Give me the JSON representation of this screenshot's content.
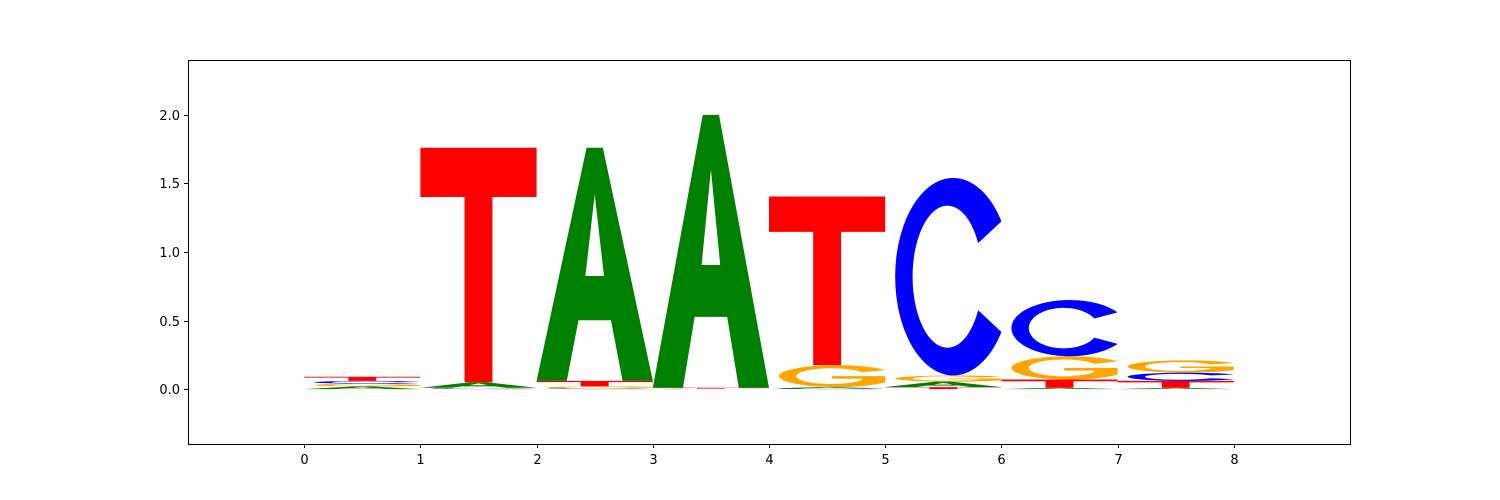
{
  "chart_data": {
    "type": "sequence-logo",
    "xlim": [
      -1,
      9
    ],
    "ylim": [
      -0.4,
      2.4
    ],
    "xticks": [
      0,
      1,
      2,
      3,
      4,
      5,
      6,
      7,
      8
    ],
    "yticks": [
      0.0,
      0.5,
      1.0,
      1.5,
      2.0
    ],
    "ytick_labels": [
      "0.0",
      "0.5",
      "1.0",
      "1.5",
      "2.0"
    ],
    "xtick_labels": [
      "0",
      "1",
      "2",
      "3",
      "4",
      "5",
      "6",
      "7",
      "8"
    ],
    "letter_colors": {
      "A": "#008000",
      "C": "#0000ff",
      "G": "#ffa500",
      "T": "#ff0000"
    },
    "positions": [
      {
        "x": 0,
        "stack": [
          {
            "letter": "A",
            "height": 0.02
          },
          {
            "letter": "G",
            "height": 0.02
          },
          {
            "letter": "C",
            "height": 0.02
          },
          {
            "letter": "T",
            "height": 0.03
          }
        ]
      },
      {
        "x": 1,
        "stack": [
          {
            "letter": "C",
            "height": 0.005
          },
          {
            "letter": "G",
            "height": 0.005
          },
          {
            "letter": "A",
            "height": 0.04
          },
          {
            "letter": "T",
            "height": 1.71
          }
        ]
      },
      {
        "x": 2,
        "stack": [
          {
            "letter": "C",
            "height": 0.005
          },
          {
            "letter": "G",
            "height": 0.015
          },
          {
            "letter": "T",
            "height": 0.04
          },
          {
            "letter": "A",
            "height": 1.7
          }
        ]
      },
      {
        "x": 3,
        "stack": [
          {
            "letter": "C",
            "height": 0.002
          },
          {
            "letter": "G",
            "height": 0.002
          },
          {
            "letter": "T",
            "height": 0.006
          },
          {
            "letter": "A",
            "height": 1.99
          }
        ]
      },
      {
        "x": 4,
        "stack": [
          {
            "letter": "C",
            "height": 0.005
          },
          {
            "letter": "A",
            "height": 0.01
          },
          {
            "letter": "G",
            "height": 0.16
          },
          {
            "letter": "T",
            "height": 1.23
          }
        ]
      },
      {
        "x": 5,
        "stack": [
          {
            "letter": "T",
            "height": 0.015
          },
          {
            "letter": "A",
            "height": 0.04
          },
          {
            "letter": "G",
            "height": 0.045
          },
          {
            "letter": "C",
            "height": 1.44
          }
        ]
      },
      {
        "x": 6,
        "stack": [
          {
            "letter": "A",
            "height": 0.01
          },
          {
            "letter": "T",
            "height": 0.06
          },
          {
            "letter": "G",
            "height": 0.17
          },
          {
            "letter": "C",
            "height": 0.41
          }
        ]
      },
      {
        "x": 7,
        "stack": [
          {
            "letter": "A",
            "height": 0.01
          },
          {
            "letter": "T",
            "height": 0.05
          },
          {
            "letter": "C",
            "height": 0.06
          },
          {
            "letter": "G",
            "height": 0.09
          }
        ]
      }
    ]
  }
}
